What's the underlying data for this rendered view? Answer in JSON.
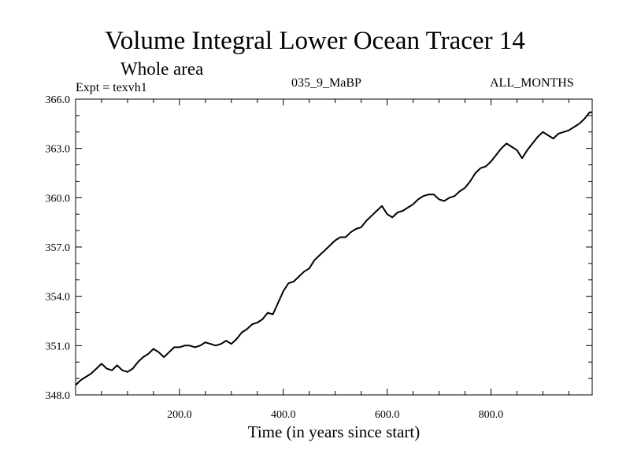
{
  "chart_data": {
    "type": "line",
    "title": "Volume Integral Lower Ocean Tracer 14",
    "subtitle": "Whole area",
    "experiment_label": "Expt = texvh1",
    "center_label": "035_9_MaBP",
    "months_label": "ALL_MONTHS",
    "xlabel": "Time (in years since start)",
    "ylabel": "",
    "xlim": [
      0,
      995
    ],
    "ylim": [
      348.0,
      366.0
    ],
    "x_ticks": [
      200,
      400,
      600,
      800
    ],
    "x_tick_labels": [
      "200.0",
      "400.0",
      "600.0",
      "800.0"
    ],
    "y_ticks": [
      348,
      351,
      354,
      357,
      360,
      363,
      366
    ],
    "y_tick_labels": [
      "348.0",
      "351.0",
      "354.0",
      "357.0",
      "360.0",
      "363.0",
      "366.0"
    ],
    "grid": false,
    "series": [
      {
        "name": "Lower Ocean Tracer 14",
        "color": "#000000",
        "x": [
          0,
          10,
          20,
          30,
          40,
          50,
          60,
          70,
          80,
          90,
          100,
          110,
          120,
          130,
          140,
          150,
          160,
          170,
          180,
          190,
          200,
          210,
          220,
          230,
          240,
          250,
          260,
          270,
          280,
          290,
          300,
          310,
          320,
          330,
          340,
          350,
          360,
          370,
          380,
          390,
          400,
          410,
          420,
          430,
          440,
          450,
          460,
          470,
          480,
          490,
          500,
          510,
          520,
          530,
          540,
          550,
          560,
          570,
          580,
          590,
          600,
          610,
          620,
          630,
          640,
          650,
          660,
          670,
          680,
          690,
          700,
          710,
          720,
          730,
          740,
          750,
          760,
          770,
          780,
          790,
          800,
          810,
          820,
          830,
          840,
          850,
          860,
          870,
          880,
          890,
          900,
          910,
          920,
          930,
          940,
          950,
          960,
          970,
          980,
          990,
          995
        ],
        "values": [
          348.6,
          348.9,
          349.1,
          349.3,
          349.6,
          349.9,
          349.6,
          349.5,
          349.8,
          349.5,
          349.4,
          349.6,
          350.0,
          350.3,
          350.5,
          350.8,
          350.6,
          350.3,
          350.6,
          350.9,
          350.9,
          351.0,
          351.0,
          350.9,
          351.0,
          351.2,
          351.1,
          351.0,
          351.1,
          351.3,
          351.1,
          351.4,
          351.8,
          352.0,
          352.3,
          352.4,
          352.6,
          353.0,
          352.9,
          353.6,
          354.3,
          354.8,
          354.9,
          355.2,
          355.5,
          355.7,
          356.2,
          356.5,
          356.8,
          357.1,
          357.4,
          357.6,
          357.6,
          357.9,
          358.1,
          358.2,
          358.6,
          358.9,
          359.2,
          359.5,
          359.0,
          358.8,
          359.1,
          359.2,
          359.4,
          359.6,
          359.9,
          360.1,
          360.2,
          360.2,
          359.9,
          359.8,
          360.0,
          360.1,
          360.4,
          360.6,
          361.0,
          361.5,
          361.8,
          361.9,
          362.2,
          362.6,
          363.0,
          363.3,
          363.1,
          362.9,
          362.4,
          362.9,
          363.3,
          363.7,
          364.0,
          363.8,
          363.6,
          363.9,
          364.0,
          364.1,
          364.3,
          364.5,
          364.8,
          365.2,
          365.2
        ]
      }
    ]
  }
}
